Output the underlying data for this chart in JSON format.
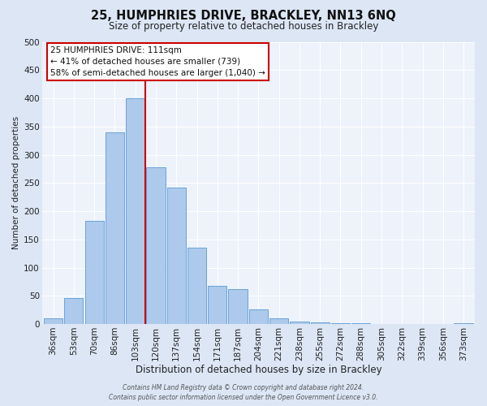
{
  "title": "25, HUMPHRIES DRIVE, BRACKLEY, NN13 6NQ",
  "subtitle": "Size of property relative to detached houses in Brackley",
  "xlabel": "Distribution of detached houses by size in Brackley",
  "ylabel": "Number of detached properties",
  "bar_labels": [
    "36sqm",
    "53sqm",
    "70sqm",
    "86sqm",
    "103sqm",
    "120sqm",
    "137sqm",
    "154sqm",
    "171sqm",
    "187sqm",
    "204sqm",
    "221sqm",
    "238sqm",
    "255sqm",
    "272sqm",
    "288sqm",
    "305sqm",
    "322sqm",
    "339sqm",
    "356sqm",
    "373sqm"
  ],
  "bar_values": [
    10,
    46,
    183,
    340,
    400,
    278,
    242,
    135,
    68,
    62,
    26,
    10,
    5,
    3,
    1,
    1,
    0,
    0,
    0,
    0,
    2
  ],
  "bar_color": "#adc9eb",
  "bar_edge_color": "#5b9bd5",
  "vline_color": "#cc0000",
  "vline_pos": 4.5,
  "ylim": [
    0,
    500
  ],
  "yticks": [
    0,
    50,
    100,
    150,
    200,
    250,
    300,
    350,
    400,
    450,
    500
  ],
  "annotation_title": "25 HUMPHRIES DRIVE: 111sqm",
  "annotation_line1": "← 41% of detached houses are smaller (739)",
  "annotation_line2": "58% of semi-detached houses are larger (1,040) →",
  "annotation_box_color": "#ffffff",
  "annotation_box_edge": "#cc0000",
  "footer_line1": "Contains HM Land Registry data © Crown copyright and database right 2024.",
  "footer_line2": "Contains public sector information licensed under the Open Government Licence v3.0.",
  "bg_color": "#dce6f5",
  "plot_bg_color": "#edf2fb",
  "grid_color": "#ffffff",
  "title_fontsize": 10.5,
  "subtitle_fontsize": 8.5,
  "xlabel_fontsize": 8.5,
  "ylabel_fontsize": 7.5,
  "tick_fontsize": 7.5,
  "annotation_fontsize": 7.5,
  "footer_fontsize": 5.5
}
